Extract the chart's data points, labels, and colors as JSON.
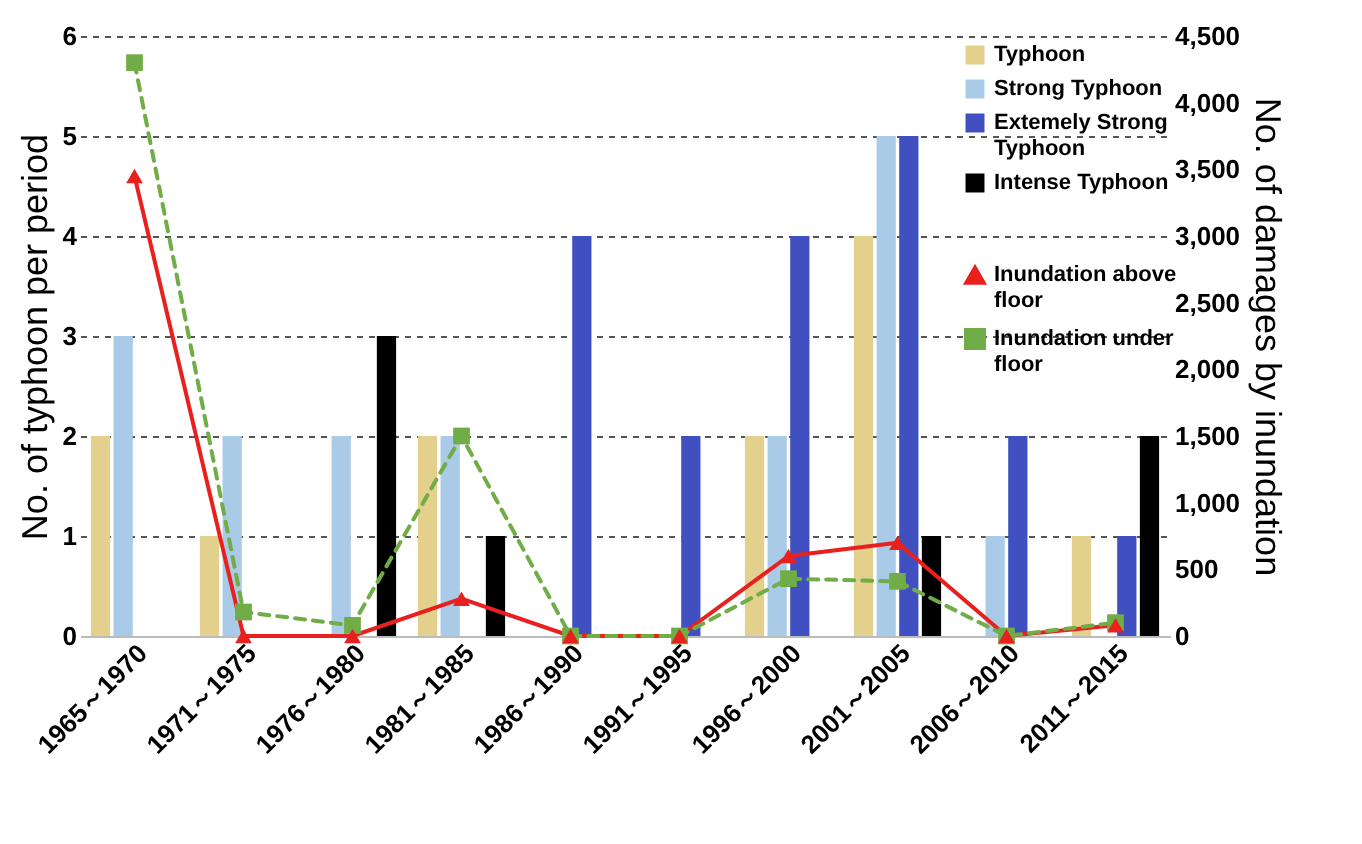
{
  "chart_data": {
    "type": "bar",
    "ylabel": "No. of typhoon per period",
    "y2label": "No. of damages by inundation",
    "categories": [
      "1965～1970",
      "1971～1975",
      "1976～1980",
      "1981～1985",
      "1986～1990",
      "1991～1995",
      "1996～2000",
      "2001～2005",
      "2006～2010",
      "2011～2015"
    ],
    "series": [
      {
        "name": "Typhoon",
        "color": "#e3d08c",
        "values": [
          2,
          1,
          null,
          2,
          null,
          null,
          2,
          4,
          null,
          1
        ]
      },
      {
        "name": "Strong Typhoon",
        "color": "#a9cbe8",
        "values": [
          3,
          2,
          2,
          2,
          null,
          null,
          2,
          5,
          1,
          null
        ]
      },
      {
        "name": "Extemely Strong Typhoon",
        "color": "#4050c0",
        "values": [
          null,
          null,
          null,
          null,
          4,
          2,
          4,
          5,
          2,
          1
        ]
      },
      {
        "name": "Intense Typhoon",
        "color": "#000000",
        "values": [
          null,
          null,
          3,
          1,
          null,
          null,
          null,
          1,
          null,
          2
        ]
      },
      {
        "name": "Inundation above floor",
        "type": "line",
        "axis": "y2",
        "color": "#e8211f",
        "marker": "triangle",
        "line_style": "solid",
        "values": [
          3450,
          0,
          0,
          280,
          0,
          0,
          600,
          700,
          0,
          80
        ]
      },
      {
        "name": "Inundation under floor",
        "type": "line",
        "axis": "y2",
        "color": "#70ad47",
        "marker": "square",
        "line_style": "dashed",
        "values": [
          4300,
          180,
          80,
          1500,
          0,
          0,
          430,
          410,
          0,
          100
        ]
      }
    ],
    "ylim": [
      0,
      6
    ],
    "yticks": [
      0,
      1,
      2,
      3,
      4,
      5,
      6
    ],
    "y2lim": [
      0,
      4500
    ],
    "y2ticks": [
      0,
      {
        "value": 500,
        "label": "500"
      },
      {
        "value": 1000,
        "label": "1,000"
      },
      {
        "value": 1500,
        "label": "1,500"
      },
      {
        "value": 2000,
        "label": "2,000"
      },
      {
        "value": 2500,
        "label": "2,500"
      },
      {
        "value": 3000,
        "label": "3,000"
      },
      {
        "value": 3500,
        "label": "3,500"
      },
      {
        "value": 4000,
        "label": "4,000"
      },
      {
        "value": 4500,
        "label": "4,500"
      }
    ],
    "grid": "y",
    "legend": "top right"
  }
}
